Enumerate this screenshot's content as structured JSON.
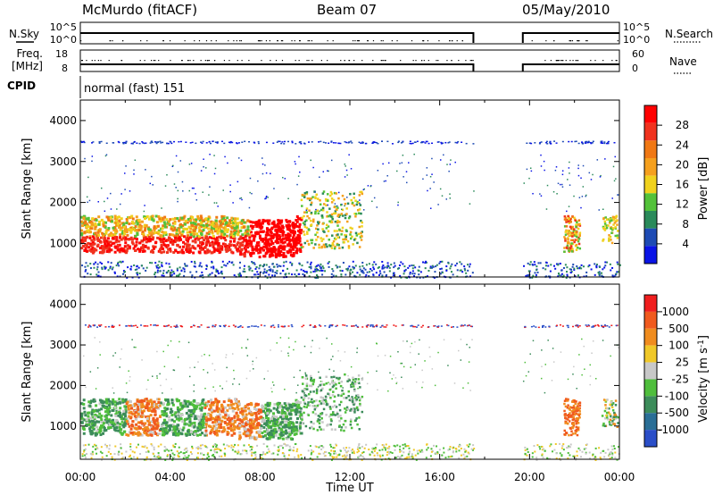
{
  "header": {
    "station": "McMurdo (fitACF)",
    "beam": "Beam 07",
    "date": "05/May/2010"
  },
  "aux_panels": {
    "nsky_label": "N.Sky",
    "nsky_ticks": [
      "10^5",
      "10^0"
    ],
    "nsearch_label": "N.Search",
    "nsearch_ticks": [
      "10^5",
      "10^0"
    ],
    "freq_label_1": "Freq.",
    "freq_label_2": "[MHz]",
    "freq_ticks": [
      "18",
      "8"
    ],
    "nave_label": "Nave",
    "nave_ticks": [
      "60",
      "0"
    ],
    "cpid_label": "CPID",
    "cpid_text": "normal (fast) 151"
  },
  "chart_data": [
    {
      "type": "heatmap",
      "name": "power",
      "ylabel": "Slant Range [km]",
      "xlabel": "Time UT",
      "x_ticks": [
        "00:00",
        "04:00",
        "08:00",
        "12:00",
        "16:00",
        "20:00",
        "00:00"
      ],
      "x_range_hours": [
        0,
        24
      ],
      "y_ticks": [
        "1000",
        "2000",
        "3000",
        "4000"
      ],
      "y_range_km": [
        180,
        4500
      ],
      "data_gap_hours": [
        17.5,
        19.7
      ],
      "colorbar": {
        "label": "Power [dB]",
        "ticks": [
          "4",
          "8",
          "12",
          "16",
          "20",
          "24",
          "28"
        ],
        "range": [
          0,
          30
        ],
        "colors": [
          "#0a14e6",
          "#1e4bb4",
          "#2a8a5a",
          "#53c23a",
          "#f0d21e",
          "#f5a01e",
          "#f07814",
          "#f0321e",
          "#ff0000"
        ]
      }
    },
    {
      "type": "heatmap",
      "name": "velocity",
      "ylabel": "Slant Range [km]",
      "xlabel": "Time UT",
      "x_ticks": [
        "00:00",
        "04:00",
        "08:00",
        "12:00",
        "16:00",
        "20:00",
        "00:00"
      ],
      "x_range_hours": [
        0,
        24
      ],
      "y_ticks": [
        "1000",
        "2000",
        "3000",
        "4000"
      ],
      "y_range_km": [
        180,
        4500
      ],
      "data_gap_hours": [
        17.5,
        19.7
      ],
      "colorbar": {
        "label": "Velocity [m s",
        "label_sup": "-1",
        "label_end": "]",
        "ticks": [
          "1000",
          "500",
          "100",
          "25",
          "-25",
          "-100",
          "-500",
          "-1000"
        ],
        "colors": [
          "#2a4ec8",
          "#2a6e96",
          "#3c8c5a",
          "#4fbe3c",
          "#c8c8c8",
          "#f0c828",
          "#f08c1e",
          "#f05a1e",
          "#f01e1e"
        ]
      }
    }
  ],
  "axis": {
    "xlabel": "Time UT",
    "x_ticks": [
      "00:00",
      "04:00",
      "08:00",
      "12:00",
      "16:00",
      "20:00",
      "00:00"
    ]
  }
}
